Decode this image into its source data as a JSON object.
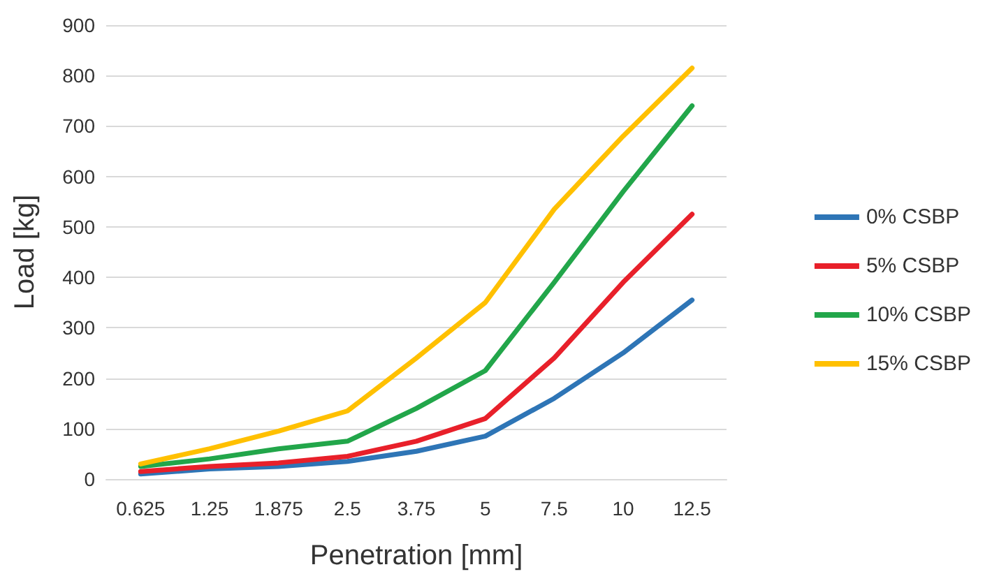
{
  "chart_data": {
    "type": "line",
    "xlabel": "Penetration [mm]",
    "ylabel": "Load [kg]",
    "categories": [
      "0.625",
      "1.25",
      "1.875",
      "2.5",
      "3.75",
      "5",
      "7.5",
      "10",
      "12.5"
    ],
    "series": [
      {
        "name": "0% CSBP",
        "color": "#2e75b6",
        "values": [
          10,
          20,
          25,
          35,
          55,
          85,
          160,
          250,
          355
        ]
      },
      {
        "name": "5% CSBP",
        "color": "#e8202a",
        "values": [
          15,
          25,
          32,
          45,
          75,
          120,
          240,
          390,
          525
        ]
      },
      {
        "name": "10% CSBP",
        "color": "#22a64a",
        "values": [
          25,
          40,
          60,
          75,
          140,
          215,
          390,
          570,
          740
        ]
      },
      {
        "name": "15% CSBP",
        "color": "#ffc000",
        "values": [
          30,
          60,
          95,
          135,
          240,
          350,
          535,
          680,
          815
        ]
      }
    ],
    "ylim": [
      0,
      900
    ],
    "yticks": [
      0,
      100,
      200,
      300,
      400,
      500,
      600,
      700,
      800,
      900
    ],
    "grid": "y",
    "legend": "right",
    "marker": "none",
    "line_style": "solid"
  }
}
